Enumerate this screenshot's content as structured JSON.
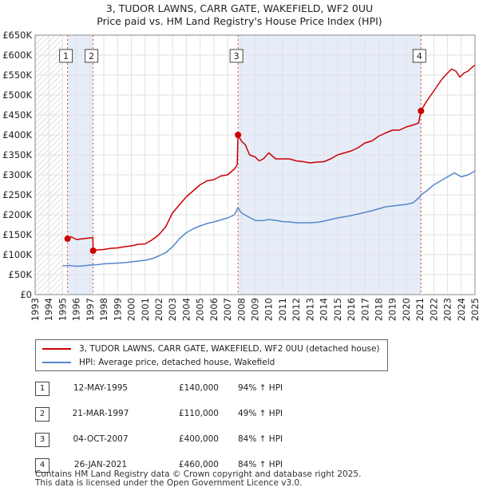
{
  "title": {
    "line1": "3, TUDOR LAWNS, CARR GATE, WAKEFIELD, WF2 0UU",
    "line2": "Price paid vs. HM Land Registry's House Price Index (HPI)"
  },
  "chart_data": {
    "type": "line",
    "title": "3, TUDOR LAWNS, CARR GATE, WAKEFIELD, WF2 0UU — Price paid vs. HM Land Registry's House Price Index (HPI)",
    "xlim": [
      1993,
      2025
    ],
    "ylim": [
      0,
      650000
    ],
    "x_ticks": [
      "1993",
      "1994",
      "1995",
      "1996",
      "1997",
      "1998",
      "1999",
      "2000",
      "2001",
      "2002",
      "2003",
      "2004",
      "2005",
      "2006",
      "2007",
      "2008",
      "2009",
      "2010",
      "2011",
      "2012",
      "2013",
      "2014",
      "2015",
      "2016",
      "2017",
      "2018",
      "2019",
      "2020",
      "2021",
      "2022",
      "2023",
      "2024",
      "2025"
    ],
    "y_ticks": [
      {
        "value": 0,
        "label": "£0"
      },
      {
        "value": 50000,
        "label": "£50K"
      },
      {
        "value": 100000,
        "label": "£100K"
      },
      {
        "value": 150000,
        "label": "£150K"
      },
      {
        "value": 200000,
        "label": "£200K"
      },
      {
        "value": 250000,
        "label": "£250K"
      },
      {
        "value": 300000,
        "label": "£300K"
      },
      {
        "value": 350000,
        "label": "£350K"
      },
      {
        "value": 400000,
        "label": "£400K"
      },
      {
        "value": 450000,
        "label": "£450K"
      },
      {
        "value": 500000,
        "label": "£500K"
      },
      {
        "value": 550000,
        "label": "£550K"
      },
      {
        "value": 600000,
        "label": "£600K"
      },
      {
        "value": 650000,
        "label": "£650K"
      }
    ],
    "hatched_before": 1995.0,
    "shaded_ranges": [
      [
        1995.36,
        1997.22
      ],
      [
        2007.76,
        2021.07
      ]
    ],
    "series": [
      {
        "name": "3, TUDOR LAWNS, CARR GATE, WAKEFIELD, WF2 0UU (detached house)",
        "color": "#cc0000",
        "x": [
          1995.36,
          1995.6,
          1996.0,
          1996.5,
          1997.0,
          1997.2,
          1997.22,
          1997.5,
          1998.0,
          1998.5,
          1999.0,
          1999.5,
          2000.0,
          2000.5,
          2001.0,
          2001.5,
          2002.0,
          2002.5,
          2003.0,
          2003.5,
          2004.0,
          2004.5,
          2005.0,
          2005.5,
          2006.0,
          2006.5,
          2007.0,
          2007.5,
          2007.7,
          2007.76,
          2008.0,
          2008.3,
          2008.6,
          2009.0,
          2009.3,
          2009.6,
          2010.0,
          2010.5,
          2011.0,
          2011.5,
          2012.0,
          2012.5,
          2013.0,
          2013.5,
          2014.0,
          2014.5,
          2015.0,
          2015.5,
          2016.0,
          2016.5,
          2017.0,
          2017.5,
          2018.0,
          2018.5,
          2019.0,
          2019.5,
          2020.0,
          2020.5,
          2020.9,
          2021.07,
          2021.4,
          2021.8,
          2022.2,
          2022.6,
          2023.0,
          2023.3,
          2023.6,
          2023.9,
          2024.2,
          2024.5,
          2024.8,
          2025.0
        ],
        "values": [
          140000,
          145000,
          138000,
          140000,
          142000,
          143000,
          110000,
          112000,
          113000,
          116000,
          117000,
          120000,
          122000,
          126000,
          127000,
          137000,
          150000,
          170000,
          205000,
          225000,
          245000,
          260000,
          275000,
          285000,
          288000,
          297000,
          300000,
          315000,
          325000,
          400000,
          385000,
          375000,
          350000,
          345000,
          335000,
          340000,
          355000,
          340000,
          340000,
          340000,
          335000,
          333000,
          330000,
          332000,
          333000,
          340000,
          350000,
          355000,
          360000,
          368000,
          380000,
          385000,
          397000,
          405000,
          412000,
          412000,
          420000,
          425000,
          430000,
          460000,
          480000,
          500000,
          520000,
          540000,
          555000,
          565000,
          560000,
          545000,
          555000,
          560000,
          570000,
          575000
        ]
      },
      {
        "name": "HPI: Average price, detached house, Wakefield",
        "color": "#5588cc",
        "x": [
          1995.0,
          1995.5,
          1996.0,
          1996.5,
          1997.0,
          1997.5,
          1998.0,
          1998.5,
          1999.0,
          1999.5,
          2000.0,
          2000.5,
          2001.0,
          2001.5,
          2002.0,
          2002.5,
          2003.0,
          2003.5,
          2004.0,
          2004.5,
          2005.0,
          2005.5,
          2006.0,
          2006.5,
          2007.0,
          2007.5,
          2007.76,
          2008.0,
          2008.5,
          2009.0,
          2009.5,
          2010.0,
          2010.5,
          2011.0,
          2011.5,
          2012.0,
          2012.5,
          2013.0,
          2013.5,
          2014.0,
          2014.5,
          2015.0,
          2015.5,
          2016.0,
          2016.5,
          2017.0,
          2017.5,
          2018.0,
          2018.5,
          2019.0,
          2019.5,
          2020.0,
          2020.5,
          2021.0,
          2021.07,
          2021.5,
          2022.0,
          2022.5,
          2023.0,
          2023.5,
          2024.0,
          2024.5,
          2025.0
        ],
        "values": [
          72000,
          73000,
          71000,
          72000,
          74000,
          75000,
          77000,
          78000,
          79000,
          80000,
          82000,
          84000,
          86000,
          90000,
          97000,
          105000,
          120000,
          140000,
          155000,
          165000,
          172000,
          178000,
          182000,
          187000,
          192000,
          200000,
          218000,
          205000,
          195000,
          186000,
          185000,
          188000,
          186000,
          183000,
          182000,
          180000,
          180000,
          180000,
          181000,
          184000,
          188000,
          192000,
          195000,
          198000,
          202000,
          206000,
          210000,
          215000,
          220000,
          222000,
          224000,
          226000,
          230000,
          245000,
          250000,
          260000,
          275000,
          285000,
          295000,
          305000,
          295000,
          300000,
          310000
        ]
      }
    ],
    "annotations": [
      {
        "label": "1",
        "x": 1995.36,
        "value": 140000
      },
      {
        "label": "2",
        "x": 1997.22,
        "value": 110000
      },
      {
        "label": "3",
        "x": 2007.76,
        "value": 400000
      },
      {
        "label": "4",
        "x": 2021.07,
        "value": 460000
      }
    ]
  },
  "legend": {
    "items": [
      {
        "label": "3, TUDOR LAWNS, CARR GATE, WAKEFIELD, WF2 0UU (detached house)",
        "color": "#cc0000"
      },
      {
        "label": "HPI: Average price, detached house, Wakefield",
        "color": "#5588cc"
      }
    ]
  },
  "transactions": [
    {
      "num": "1",
      "date": "12-MAY-1995",
      "price": "£140,000",
      "hpi": "94% ↑ HPI"
    },
    {
      "num": "2",
      "date": "21-MAR-1997",
      "price": "£110,000",
      "hpi": "49% ↑ HPI"
    },
    {
      "num": "3",
      "date": "04-OCT-2007",
      "price": "£400,000",
      "hpi": "84% ↑ HPI"
    },
    {
      "num": "4",
      "date": "26-JAN-2021",
      "price": "£460,000",
      "hpi": "84% ↑ HPI"
    }
  ],
  "footer": {
    "line1": "Contains HM Land Registry data © Crown copyright and database right 2025.",
    "line2": "This data is licensed under the Open Government Licence v3.0."
  }
}
